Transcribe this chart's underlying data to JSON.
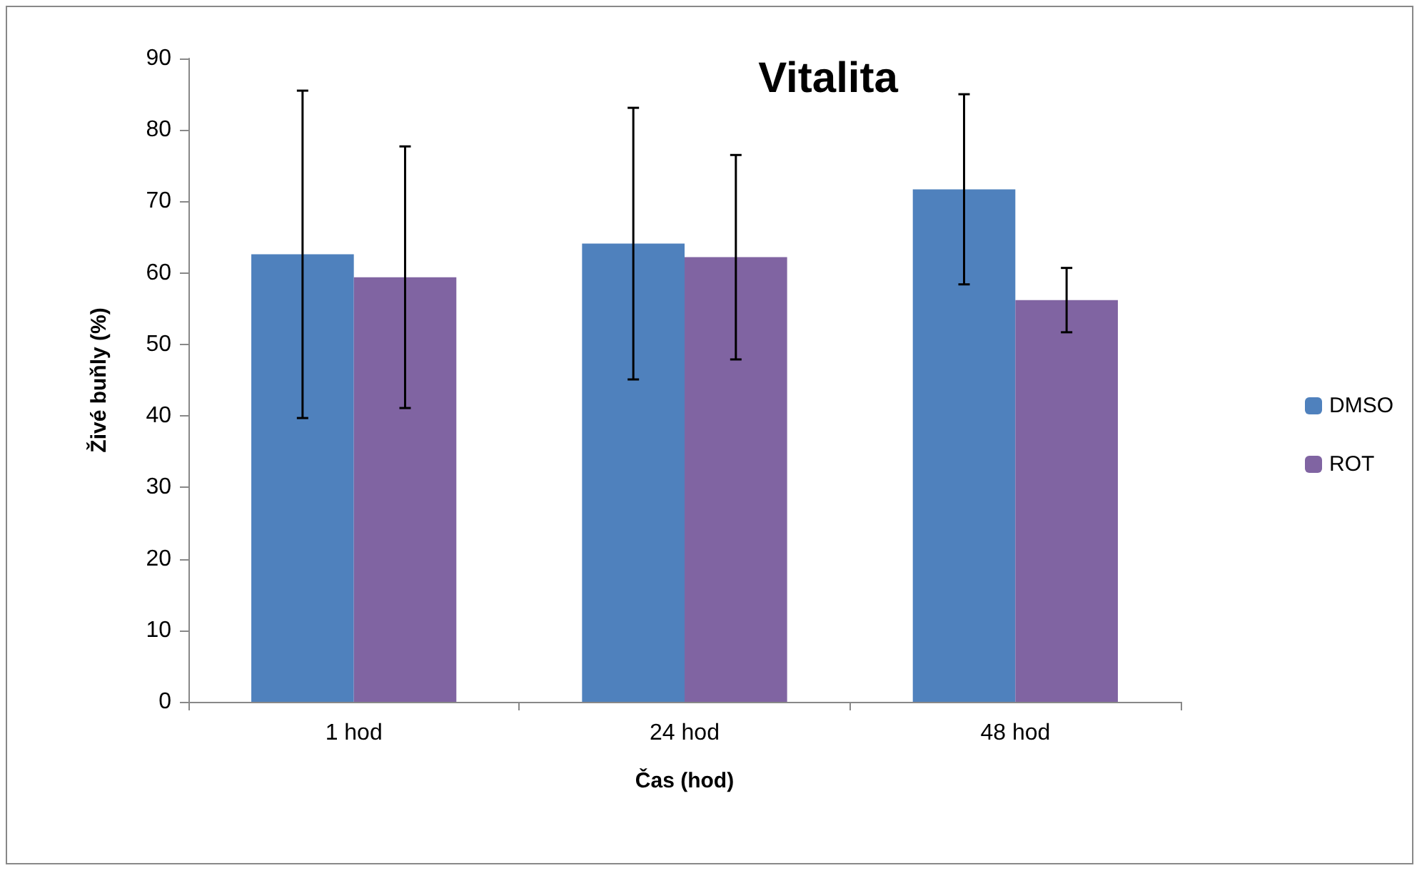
{
  "chart_data": {
    "type": "bar",
    "title": "Vitalita",
    "xlabel": "Čas (hod)",
    "ylabel": "Živé buňly (%)",
    "categories": [
      "1 hod",
      "24 hod",
      "48 hod"
    ],
    "series": [
      {
        "name": "DMSO",
        "color": "#4f81bd",
        "values": [
          62.6,
          64.1,
          71.7
        ],
        "errors": [
          22.9,
          19.0,
          13.3
        ]
      },
      {
        "name": "ROT",
        "color": "#8064a2",
        "values": [
          59.4,
          62.2,
          56.2
        ],
        "errors": [
          18.3,
          14.3,
          4.5
        ]
      }
    ],
    "ylim": [
      0,
      90
    ],
    "yticks": [
      0,
      10,
      20,
      30,
      40,
      50,
      60,
      70,
      80,
      90
    ],
    "grid": false,
    "legend": "right"
  }
}
